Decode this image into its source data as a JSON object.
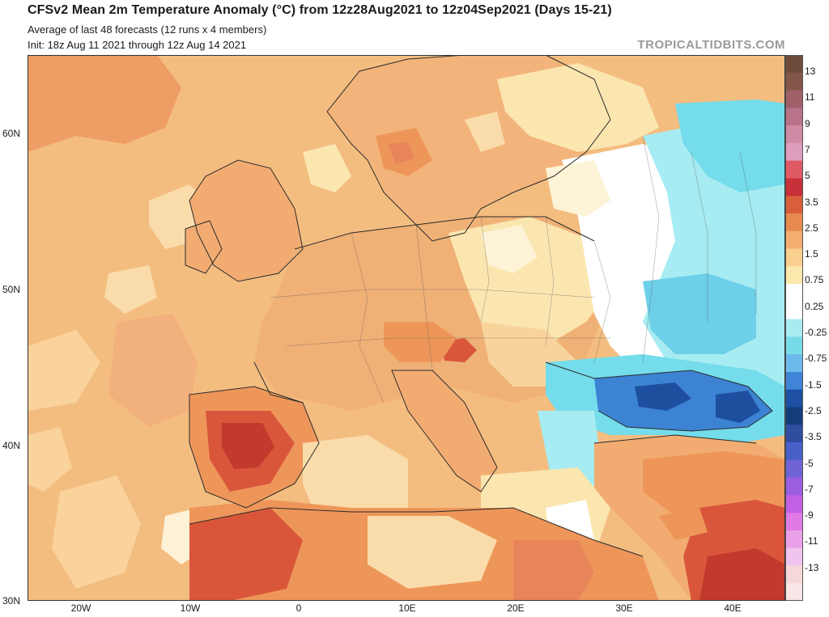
{
  "header": {
    "title": "CFSv2 Mean 2m Temperature Anomaly (°C) from 12z28Aug2021 to 12z04Sep2021 (Days 15-21)",
    "subtitle": "Average of last 48 forecasts (12 runs x 4 members)",
    "init": "Init: 18z Aug 11 2021 through 12z Aug 14 2021",
    "brand": "TROPICALTIDBITS.COM"
  },
  "axes": {
    "lat_labels": [
      "60N",
      "50N",
      "40N",
      "30N"
    ],
    "lon_labels": [
      "20W",
      "10W",
      "0",
      "10E",
      "20E",
      "30E",
      "40E"
    ]
  },
  "colorbar": {
    "labels": [
      "13",
      "11",
      "9",
      "7",
      "5",
      "3.5",
      "2.5",
      "1.5",
      "0.75",
      "0.25",
      "-0.25",
      "-0.75",
      "-1.5",
      "-2.5",
      "-3.5",
      "-5",
      "-7",
      "-9",
      "-11",
      "-13"
    ],
    "colors": [
      "#6e4c3c",
      "#84564a",
      "#a05f69",
      "#b97388",
      "#cf8aa5",
      "#de9dbb",
      "#e05a66",
      "#c8303a",
      "#d95f3b",
      "#e88a4f",
      "#f3ad6e",
      "#f8cf8e",
      "#fbe9ad",
      "#ffffff",
      "#ffffff",
      "#a9ecf0",
      "#77dbe7",
      "#6cb9ec",
      "#3f84d6",
      "#1d4fa2",
      "#143c7a",
      "#2f4ea0",
      "#4860c8",
      "#6f63d6",
      "#9b5ee0",
      "#c35fe4",
      "#e07ae6",
      "#eaa0e8",
      "#f0c4ee",
      "#f7d8d8",
      "#f9e6e6"
    ]
  },
  "map": {
    "region": "Europe",
    "palette_keys": [
      "warm-dark",
      "warm-mid",
      "warm-light",
      "neutral",
      "cool-light",
      "cool-mid",
      "cool-dark"
    ],
    "colors": {
      "ocean_base": "#f5be80",
      "land_base": "#f0c690",
      "pale": "#fbe8b0",
      "paler": "#fdf3d4",
      "warm": "#ee9659",
      "hot": "#d9563b",
      "hotter": "#c23a2e",
      "cool_light": "#9eeaf2",
      "cool_mid": "#6dcfe8",
      "cool_blue": "#3d83d4",
      "cool_dark": "#1e4f9f",
      "border": "#333333"
    }
  }
}
